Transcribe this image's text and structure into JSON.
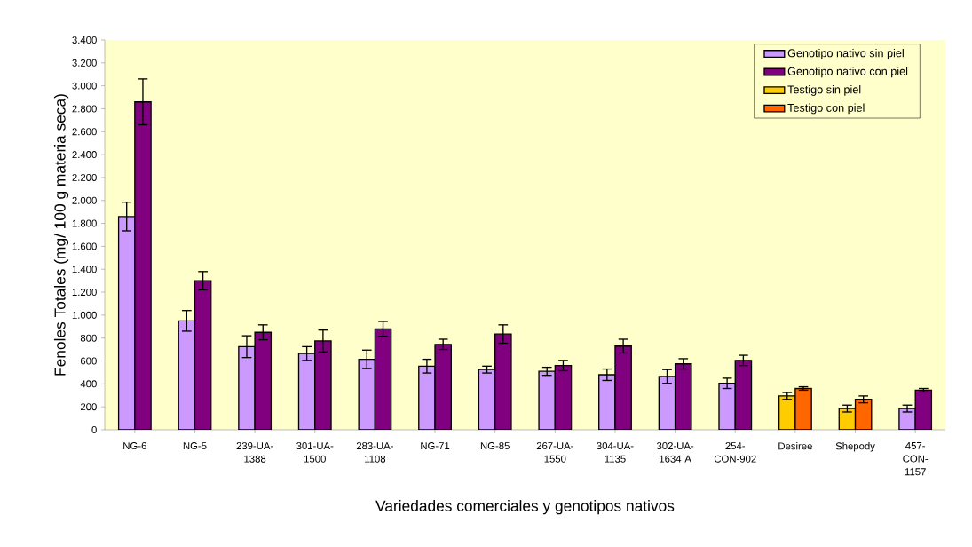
{
  "chart_data": {
    "type": "bar",
    "xlabel": "Variedades comerciales y genotipos nativos",
    "ylabel": "Fenoles Totales  (mg/ 100 g materia seca)",
    "categories": [
      "NG-6",
      "NG-5",
      "239-UA-1388",
      "301-UA-1500",
      "283-UA-1108",
      "NG-71",
      "NG-85",
      "267-UA-1550",
      "304-UA-1135",
      "302-UA-1634 A",
      "254-CON-902",
      "Desiree",
      "Shepody",
      "457-CON-1157"
    ],
    "series": [
      {
        "name": "Genotipo nativo sin piel",
        "color": "#cc99ff",
        "values": [
          1860,
          950,
          725,
          665,
          615,
          555,
          525,
          510,
          480,
          465,
          405,
          null,
          null,
          185
        ],
        "errors": [
          125,
          90,
          95,
          60,
          80,
          60,
          30,
          35,
          50,
          60,
          45,
          null,
          null,
          30
        ]
      },
      {
        "name": "Genotipo nativo con piel",
        "color": "#800080",
        "values": [
          2860,
          1300,
          850,
          775,
          880,
          745,
          835,
          560,
          730,
          575,
          605,
          null,
          null,
          345
        ],
        "errors": [
          200,
          80,
          65,
          95,
          65,
          45,
          80,
          45,
          60,
          45,
          45,
          null,
          null,
          15
        ]
      },
      {
        "name": "Testigo sin piel",
        "color": "#ffcc00",
        "values": [
          null,
          null,
          null,
          null,
          null,
          null,
          null,
          null,
          null,
          null,
          null,
          295,
          185,
          null
        ],
        "errors": [
          null,
          null,
          null,
          null,
          null,
          null,
          null,
          null,
          null,
          null,
          null,
          30,
          30,
          null
        ]
      },
      {
        "name": "Testigo con piel",
        "color": "#ff6600",
        "values": [
          null,
          null,
          null,
          null,
          null,
          null,
          null,
          null,
          null,
          null,
          null,
          360,
          265,
          null
        ],
        "errors": [
          null,
          null,
          null,
          null,
          null,
          null,
          null,
          null,
          null,
          null,
          null,
          15,
          30,
          null
        ]
      }
    ],
    "ylim": [
      0,
      3400
    ],
    "yticks": [
      0,
      200,
      400,
      600,
      800,
      {
        "value": 1000,
        "label": "1.000"
      },
      {
        "value": 1200,
        "label": "1.200"
      },
      {
        "value": 1400,
        "label": "1.400"
      },
      {
        "value": 1600,
        "label": "1.600"
      },
      {
        "value": 1800,
        "label": "1.800"
      },
      {
        "value": 2000,
        "label": "2.000"
      },
      {
        "value": 2200,
        "label": "2.200"
      },
      {
        "value": 2400,
        "label": "2.400"
      },
      {
        "value": 2600,
        "label": "2.600"
      },
      {
        "value": 2800,
        "label": "2.800"
      },
      {
        "value": 3000,
        "label": "3.000"
      },
      {
        "value": 3200,
        "label": "3.200"
      },
      {
        "value": 3400,
        "label": "3.400"
      }
    ],
    "grid": false,
    "legend": "top right"
  }
}
